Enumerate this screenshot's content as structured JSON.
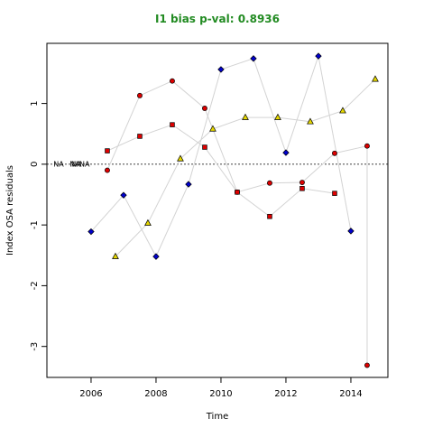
{
  "chart_data": {
    "type": "scatter",
    "title": "I1 bias p-val: 0.8936",
    "title_color": "#228b22",
    "x_label": "Time",
    "y_label": "Index OSA residuals",
    "xlim": [
      2004.64,
      2015.14
    ],
    "ylim": [
      -3.51,
      1.99
    ],
    "xticks": [
      2006,
      2008,
      2010,
      2012,
      2014
    ],
    "yticks": [
      -3,
      -2,
      -1,
      0,
      1
    ],
    "hline": 0,
    "line_color": "#d3d3d3",
    "series": [
      {
        "marker": "circle",
        "color": "#dd0000",
        "x": [
          2006.5,
          2007.5,
          2008.5,
          2009.5,
          2010.5,
          2011.5,
          2012.5,
          2013.5,
          2014.5,
          2014.5
        ],
        "values": [
          -0.1,
          1.13,
          1.37,
          0.92,
          -0.46,
          -0.31,
          -0.3,
          0.18,
          0.3,
          -3.31
        ]
      },
      {
        "marker": "square",
        "color": "#dd0000",
        "x": [
          2006.5,
          2007.5,
          2008.5,
          2009.5,
          2010.5,
          2011.5,
          2012.5,
          2013.5
        ],
        "values": [
          0.22,
          0.46,
          0.65,
          0.28,
          -0.46,
          -0.86,
          -0.4,
          -0.48
        ]
      },
      {
        "marker": "diamond",
        "color": "#0000cc",
        "x": [
          2006,
          2007,
          2008,
          2009,
          2010,
          2011,
          2012,
          2013,
          2014
        ],
        "values": [
          -1.11,
          -0.51,
          -1.52,
          -0.33,
          1.56,
          1.74,
          0.19,
          1.78,
          -1.1
        ]
      },
      {
        "marker": "triangle",
        "color": "#e6d800",
        "x": [
          2006.75,
          2007.75,
          2008.75,
          2009.75,
          2010.75,
          2011.75,
          2012.75,
          2013.75,
          2014.75
        ],
        "values": [
          -1.52,
          -0.97,
          0.09,
          0.58,
          0.77,
          0.77,
          0.7,
          0.88,
          1.4
        ]
      }
    ],
    "annotations": [
      {
        "text": "NA",
        "x": 2005.0,
        "y": 0
      },
      {
        "text": "NA",
        "x": 2005.5,
        "y": 0
      },
      {
        "text": "NA",
        "x": 2005.55,
        "y": 0
      },
      {
        "text": "NA",
        "x": 2005.8,
        "y": 0
      }
    ]
  }
}
